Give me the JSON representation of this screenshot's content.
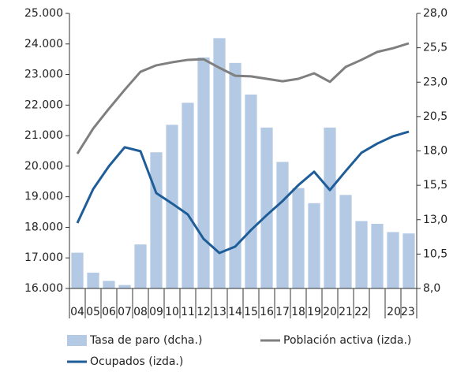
{
  "chart_data": {
    "type": "bar-line",
    "categories": [
      "04",
      "05",
      "06",
      "07",
      "08",
      "09",
      "10",
      "11",
      "12",
      "13",
      "14",
      "15",
      "16",
      "17",
      "18",
      "19",
      "20",
      "21",
      "22",
      null,
      "2023",
      null
    ],
    "series": [
      {
        "name": "Tasa de paro (dcha.)",
        "type": "bar",
        "axis": "y2",
        "color": "#b4c9e3",
        "values": [
          10.6,
          9.15,
          8.55,
          8.25,
          11.2,
          17.9,
          19.9,
          21.5,
          24.8,
          26.2,
          24.4,
          22.1,
          19.7,
          17.2,
          15.3,
          14.2,
          19.7,
          14.8,
          12.9,
          12.7,
          12.1,
          12.0
        ]
      },
      {
        "name": "Población activa (izda.)",
        "type": "line",
        "axis": "y",
        "color": "#7f7f7f",
        "values": [
          20410,
          21230,
          21880,
          22500,
          23090,
          23300,
          23400,
          23480,
          23500,
          23220,
          22960,
          22940,
          22860,
          22780,
          22860,
          23040,
          22760,
          23250,
          23480,
          23740,
          23860,
          24020
        ]
      },
      {
        "name": "Ocupados (izda.)",
        "type": "line",
        "axis": "y",
        "color": "#1f5d99",
        "values": [
          18140,
          19250,
          20000,
          20620,
          20490,
          19120,
          18780,
          18420,
          17620,
          17160,
          17370,
          17910,
          18400,
          18860,
          19380,
          19820,
          19220,
          19840,
          20440,
          20740,
          20980,
          21130
        ]
      }
    ],
    "ylim": [
      16000,
      25000
    ],
    "yticks": [
      {
        "value": 16000,
        "label": "16.000"
      },
      {
        "value": 17000,
        "label": "17.000"
      },
      {
        "value": 18000,
        "label": "18.000"
      },
      {
        "value": 19000,
        "label": "19.000"
      },
      {
        "value": 20000,
        "label": "20.000"
      },
      {
        "value": 21000,
        "label": "21.000"
      },
      {
        "value": 22000,
        "label": "22.000"
      },
      {
        "value": 23000,
        "label": "23.000"
      },
      {
        "value": 24000,
        "label": "24.000"
      },
      {
        "value": 25000,
        "label": "25.000"
      }
    ],
    "y2lim": [
      8,
      28
    ],
    "y2ticks": [
      {
        "value": 8,
        "label": "8,0"
      },
      {
        "value": 10.5,
        "label": "10,5"
      },
      {
        "value": 13,
        "label": "13,0"
      },
      {
        "value": 15.5,
        "label": "15,5"
      },
      {
        "value": 18,
        "label": "18,0"
      },
      {
        "value": 20.5,
        "label": "20,5"
      },
      {
        "value": 23,
        "label": "23,0"
      },
      {
        "value": 25.5,
        "label": "25,5"
      },
      {
        "value": 28,
        "label": "28,0"
      }
    ],
    "legend": "bottom"
  }
}
